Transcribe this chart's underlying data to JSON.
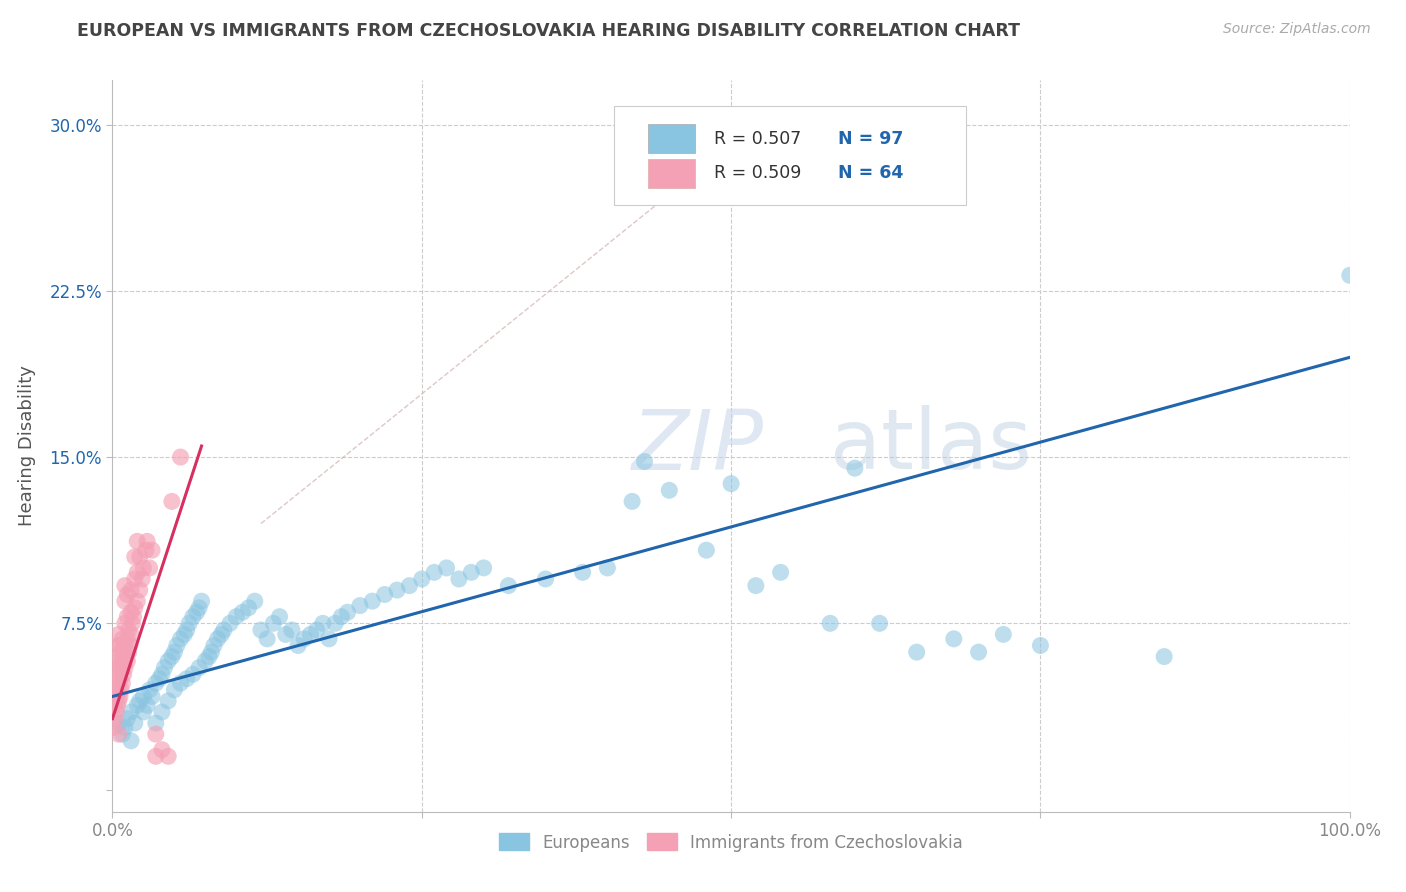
{
  "title": "EUROPEAN VS IMMIGRANTS FROM CZECHOSLOVAKIA HEARING DISABILITY CORRELATION CHART",
  "source": "Source: ZipAtlas.com",
  "ylabel": "Hearing Disability",
  "watermark": "ZIPatlas",
  "xlim": [
    0.0,
    1.0
  ],
  "ylim": [
    -0.01,
    0.32
  ],
  "xtick_vals": [
    0.0,
    0.25,
    0.5,
    0.75,
    1.0
  ],
  "xtick_labels": [
    "0.0%",
    "",
    "",
    "",
    "100.0%"
  ],
  "ytick_vals": [
    0.0,
    0.075,
    0.15,
    0.225,
    0.3
  ],
  "ytick_labels": [
    "",
    "7.5%",
    "15.0%",
    "22.5%",
    "30.0%"
  ],
  "blue_color": "#89c4e1",
  "pink_color": "#f4a0b5",
  "blue_line_color": "#2166ac",
  "pink_line_color": "#d63060",
  "diag_line_color": "#d0b0b0",
  "title_color": "#444444",
  "label_color": "#888888",
  "grid_color": "#cccccc",
  "source_color": "#aaaaaa",
  "axis_color": "#bbbbbb",
  "blue_r": 0.507,
  "pink_r": 0.509,
  "blue_n": 97,
  "pink_n": 64,
  "blue_line_x0": 0.0,
  "blue_line_y0": 0.042,
  "blue_line_x1": 1.0,
  "blue_line_y1": 0.195,
  "pink_line_x0": 0.0,
  "pink_line_y0": 0.032,
  "pink_line_x1": 0.072,
  "pink_line_y1": 0.155,
  "diag_line_x0": 0.12,
  "diag_line_y0": 0.12,
  "diag_line_x1": 0.52,
  "diag_line_y1": 0.3,
  "blue_scatter": [
    [
      0.005,
      0.03
    ],
    [
      0.008,
      0.025
    ],
    [
      0.01,
      0.028
    ],
    [
      0.012,
      0.032
    ],
    [
      0.015,
      0.035
    ],
    [
      0.015,
      0.022
    ],
    [
      0.018,
      0.03
    ],
    [
      0.02,
      0.038
    ],
    [
      0.022,
      0.04
    ],
    [
      0.025,
      0.042
    ],
    [
      0.025,
      0.035
    ],
    [
      0.028,
      0.038
    ],
    [
      0.03,
      0.045
    ],
    [
      0.032,
      0.042
    ],
    [
      0.035,
      0.048
    ],
    [
      0.035,
      0.03
    ],
    [
      0.038,
      0.05
    ],
    [
      0.04,
      0.052
    ],
    [
      0.04,
      0.035
    ],
    [
      0.042,
      0.055
    ],
    [
      0.045,
      0.058
    ],
    [
      0.045,
      0.04
    ],
    [
      0.048,
      0.06
    ],
    [
      0.05,
      0.062
    ],
    [
      0.05,
      0.045
    ],
    [
      0.052,
      0.065
    ],
    [
      0.055,
      0.068
    ],
    [
      0.055,
      0.048
    ],
    [
      0.058,
      0.07
    ],
    [
      0.06,
      0.072
    ],
    [
      0.06,
      0.05
    ],
    [
      0.062,
      0.075
    ],
    [
      0.065,
      0.078
    ],
    [
      0.065,
      0.052
    ],
    [
      0.068,
      0.08
    ],
    [
      0.07,
      0.082
    ],
    [
      0.07,
      0.055
    ],
    [
      0.072,
      0.085
    ],
    [
      0.075,
      0.058
    ],
    [
      0.078,
      0.06
    ],
    [
      0.08,
      0.062
    ],
    [
      0.082,
      0.065
    ],
    [
      0.085,
      0.068
    ],
    [
      0.088,
      0.07
    ],
    [
      0.09,
      0.072
    ],
    [
      0.095,
      0.075
    ],
    [
      0.1,
      0.078
    ],
    [
      0.105,
      0.08
    ],
    [
      0.11,
      0.082
    ],
    [
      0.115,
      0.085
    ],
    [
      0.12,
      0.072
    ],
    [
      0.125,
      0.068
    ],
    [
      0.13,
      0.075
    ],
    [
      0.135,
      0.078
    ],
    [
      0.14,
      0.07
    ],
    [
      0.145,
      0.072
    ],
    [
      0.15,
      0.065
    ],
    [
      0.155,
      0.068
    ],
    [
      0.16,
      0.07
    ],
    [
      0.165,
      0.072
    ],
    [
      0.17,
      0.075
    ],
    [
      0.175,
      0.068
    ],
    [
      0.18,
      0.075
    ],
    [
      0.185,
      0.078
    ],
    [
      0.19,
      0.08
    ],
    [
      0.2,
      0.083
    ],
    [
      0.21,
      0.085
    ],
    [
      0.22,
      0.088
    ],
    [
      0.23,
      0.09
    ],
    [
      0.24,
      0.092
    ],
    [
      0.25,
      0.095
    ],
    [
      0.26,
      0.098
    ],
    [
      0.27,
      0.1
    ],
    [
      0.28,
      0.095
    ],
    [
      0.29,
      0.098
    ],
    [
      0.3,
      0.1
    ],
    [
      0.32,
      0.092
    ],
    [
      0.35,
      0.095
    ],
    [
      0.38,
      0.098
    ],
    [
      0.4,
      0.1
    ],
    [
      0.42,
      0.13
    ],
    [
      0.43,
      0.148
    ],
    [
      0.45,
      0.135
    ],
    [
      0.48,
      0.108
    ],
    [
      0.5,
      0.138
    ],
    [
      0.52,
      0.092
    ],
    [
      0.54,
      0.098
    ],
    [
      0.58,
      0.075
    ],
    [
      0.6,
      0.145
    ],
    [
      0.62,
      0.075
    ],
    [
      0.65,
      0.062
    ],
    [
      0.68,
      0.068
    ],
    [
      0.7,
      0.062
    ],
    [
      0.72,
      0.07
    ],
    [
      0.75,
      0.065
    ],
    [
      0.85,
      0.06
    ],
    [
      1.0,
      0.232
    ]
  ],
  "pink_scatter": [
    [
      0.001,
      0.028
    ],
    [
      0.002,
      0.032
    ],
    [
      0.002,
      0.038
    ],
    [
      0.003,
      0.035
    ],
    [
      0.003,
      0.042
    ],
    [
      0.004,
      0.038
    ],
    [
      0.004,
      0.045
    ],
    [
      0.004,
      0.052
    ],
    [
      0.005,
      0.04
    ],
    [
      0.005,
      0.048
    ],
    [
      0.005,
      0.055
    ],
    [
      0.005,
      0.06
    ],
    [
      0.005,
      0.065
    ],
    [
      0.005,
      0.07
    ],
    [
      0.005,
      0.025
    ],
    [
      0.006,
      0.042
    ],
    [
      0.006,
      0.05
    ],
    [
      0.006,
      0.058
    ],
    [
      0.006,
      0.065
    ],
    [
      0.007,
      0.045
    ],
    [
      0.007,
      0.055
    ],
    [
      0.007,
      0.062
    ],
    [
      0.008,
      0.048
    ],
    [
      0.008,
      0.058
    ],
    [
      0.008,
      0.068
    ],
    [
      0.009,
      0.052
    ],
    [
      0.009,
      0.062
    ],
    [
      0.01,
      0.055
    ],
    [
      0.01,
      0.065
    ],
    [
      0.01,
      0.075
    ],
    [
      0.01,
      0.085
    ],
    [
      0.01,
      0.092
    ],
    [
      0.012,
      0.058
    ],
    [
      0.012,
      0.068
    ],
    [
      0.012,
      0.078
    ],
    [
      0.012,
      0.088
    ],
    [
      0.013,
      0.062
    ],
    [
      0.013,
      0.072
    ],
    [
      0.014,
      0.065
    ],
    [
      0.015,
      0.07
    ],
    [
      0.015,
      0.08
    ],
    [
      0.015,
      0.09
    ],
    [
      0.016,
      0.075
    ],
    [
      0.017,
      0.078
    ],
    [
      0.018,
      0.082
    ],
    [
      0.018,
      0.095
    ],
    [
      0.018,
      0.105
    ],
    [
      0.02,
      0.085
    ],
    [
      0.02,
      0.098
    ],
    [
      0.02,
      0.112
    ],
    [
      0.022,
      0.09
    ],
    [
      0.022,
      0.105
    ],
    [
      0.024,
      0.095
    ],
    [
      0.025,
      0.1
    ],
    [
      0.027,
      0.108
    ],
    [
      0.028,
      0.112
    ],
    [
      0.03,
      0.1
    ],
    [
      0.032,
      0.108
    ],
    [
      0.035,
      0.015
    ],
    [
      0.035,
      0.025
    ],
    [
      0.04,
      0.018
    ],
    [
      0.045,
      0.015
    ],
    [
      0.048,
      0.13
    ],
    [
      0.055,
      0.15
    ]
  ]
}
